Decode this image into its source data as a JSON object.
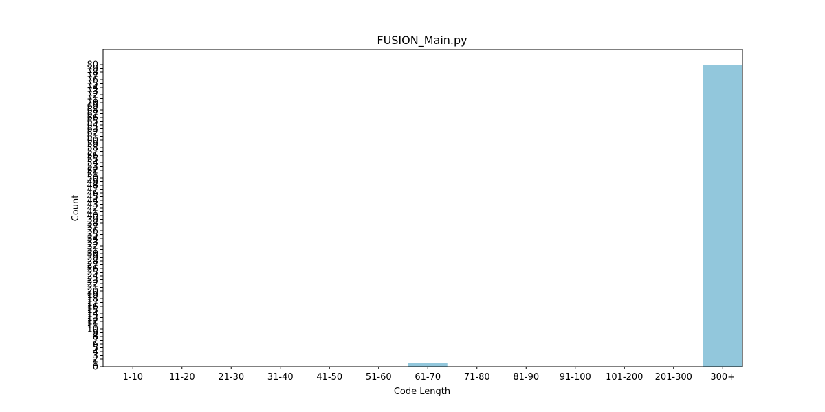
{
  "chart_data": {
    "type": "bar",
    "title": "FUSION_Main.py",
    "xlabel": "Code Length",
    "ylabel": "Count",
    "categories": [
      "1-10",
      "11-20",
      "21-30",
      "31-40",
      "41-50",
      "51-60",
      "61-70",
      "71-80",
      "81-90",
      "91-100",
      "101-200",
      "201-300",
      "300+"
    ],
    "values": [
      0,
      0,
      0,
      0,
      0,
      0,
      1,
      0,
      0,
      0,
      0,
      0,
      80
    ],
    "ylim": [
      0,
      80
    ],
    "yticks_step": 1,
    "bar_color": "#92c7dc",
    "grid": false,
    "legend": "none"
  }
}
